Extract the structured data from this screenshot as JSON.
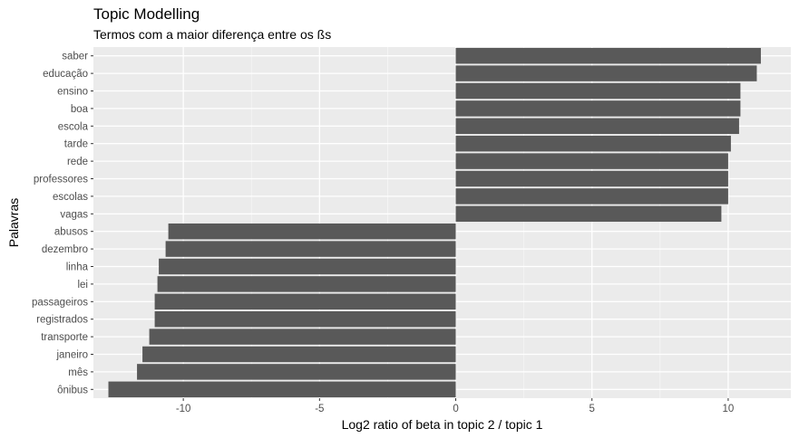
{
  "chart_data": {
    "type": "bar",
    "orientation": "horizontal",
    "title": "Topic Modelling",
    "subtitle": "Termos com a maior diferença entre os ßs",
    "xlabel": "Log2 ratio of beta in topic 2 / topic 1",
    "ylabel": "Palavras",
    "xlim": [
      -13.3,
      12.3
    ],
    "x_ticks": [
      -10,
      -5,
      0,
      5,
      10
    ],
    "x_tick_labels": [
      "-10",
      "-5",
      "0",
      "5",
      "10"
    ],
    "grid": true,
    "bar_color": "#595959",
    "panel_color": "#ebebeb",
    "categories": [
      "saber",
      "educação",
      "ensino",
      "boa",
      "escola",
      "tarde",
      "rede",
      "professores",
      "escolas",
      "vagas",
      "abusos",
      "dezembro",
      "linha",
      "lei",
      "passageiros",
      "registrados",
      "transporte",
      "janeiro",
      "mês",
      "ônibus"
    ],
    "values": [
      11.2,
      11.05,
      10.45,
      10.45,
      10.4,
      10.1,
      10.0,
      10.0,
      10.0,
      9.75,
      -10.55,
      -10.65,
      -10.9,
      -10.95,
      -11.05,
      -11.05,
      -11.25,
      -11.5,
      -11.7,
      -12.75
    ]
  }
}
